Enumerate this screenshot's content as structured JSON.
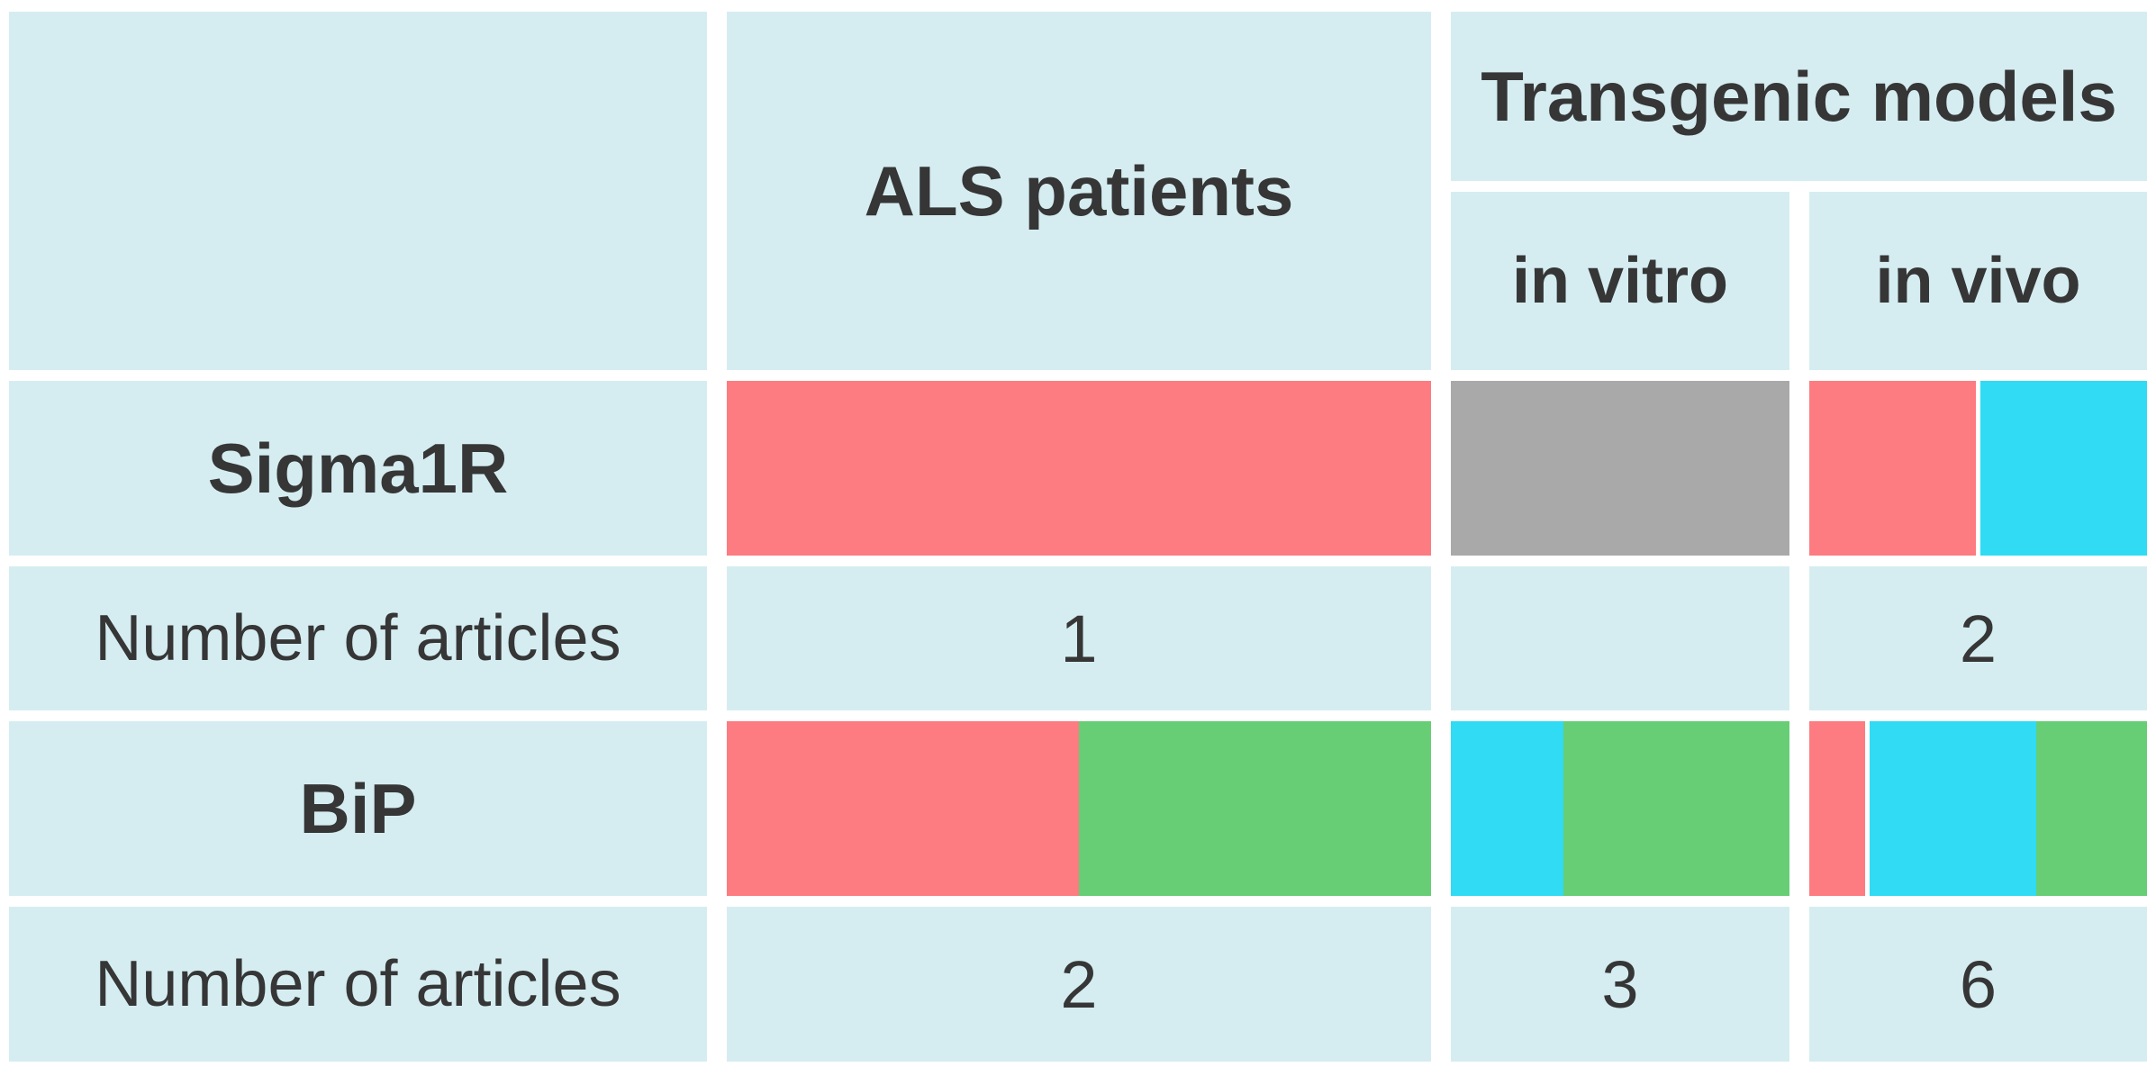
{
  "figure": {
    "header": {
      "corner": "",
      "als_patients": "ALS patients",
      "transgenic_models": "Transgenic models",
      "in_vitro": "in vitro",
      "in_vivo": "in vivo"
    },
    "rows": {
      "sigma1r": {
        "label": "Sigma1R"
      },
      "sigma1r_articles": {
        "label": "Number of articles",
        "als": "1",
        "in_vitro": "",
        "in_vivo": "2"
      },
      "bip": {
        "label": "BiP"
      },
      "bip_articles": {
        "label": "Number of articles",
        "als": "2",
        "in_vitro": "3",
        "in_vivo": "6"
      }
    }
  },
  "colors": {
    "red": "#FC7C81",
    "green": "#67CE76",
    "cyan": "#30DBF3",
    "gray": "#A9A9A9",
    "cell_bg": "#D5EDF1",
    "text": "#363636"
  },
  "bars": {
    "sigma1r_als": [
      {
        "color": "red",
        "weight": 1
      }
    ],
    "sigma1r_in_vitro": [
      {
        "color": "gray",
        "weight": 1
      }
    ],
    "sigma1r_in_vivo": [
      {
        "color": "red",
        "weight": 1,
        "gap_after": true
      },
      {
        "color": "cyan",
        "weight": 1
      }
    ],
    "bip_als": [
      {
        "color": "red",
        "weight": 1
      },
      {
        "color": "green",
        "weight": 1
      }
    ],
    "bip_in_vitro": [
      {
        "color": "cyan",
        "weight": 1
      },
      {
        "color": "green",
        "weight": 2
      }
    ],
    "bip_in_vivo": [
      {
        "color": "red",
        "weight": 1,
        "gap_after": true
      },
      {
        "color": "cyan",
        "weight": 3
      },
      {
        "color": "green",
        "weight": 2
      }
    ]
  },
  "chart_data": {
    "type": "table",
    "title": "",
    "columns": [
      "",
      "ALS patients",
      "Transgenic models — in vitro",
      "Transgenic models — in vivo"
    ],
    "rows": [
      {
        "label": "Sigma1R",
        "cells": {
          "als_patients": {
            "articles": 1,
            "segments": [
              {
                "color": "red",
                "fraction": 1.0
              }
            ]
          },
          "in_vitro": {
            "articles": null,
            "segments": [
              {
                "color": "gray",
                "fraction": 1.0
              }
            ]
          },
          "in_vivo": {
            "articles": 2,
            "segments": [
              {
                "color": "red",
                "fraction": 0.5
              },
              {
                "color": "cyan",
                "fraction": 0.5
              }
            ]
          }
        }
      },
      {
        "label": "BiP",
        "cells": {
          "als_patients": {
            "articles": 2,
            "segments": [
              {
                "color": "red",
                "fraction": 0.5
              },
              {
                "color": "green",
                "fraction": 0.5
              }
            ]
          },
          "in_vitro": {
            "articles": 3,
            "segments": [
              {
                "color": "cyan",
                "fraction": 0.333
              },
              {
                "color": "green",
                "fraction": 0.667
              }
            ]
          },
          "in_vivo": {
            "articles": 6,
            "segments": [
              {
                "color": "red",
                "fraction": 0.167
              },
              {
                "color": "cyan",
                "fraction": 0.5
              },
              {
                "color": "green",
                "fraction": 0.333
              }
            ]
          }
        }
      }
    ],
    "legend": null,
    "grid": false
  }
}
